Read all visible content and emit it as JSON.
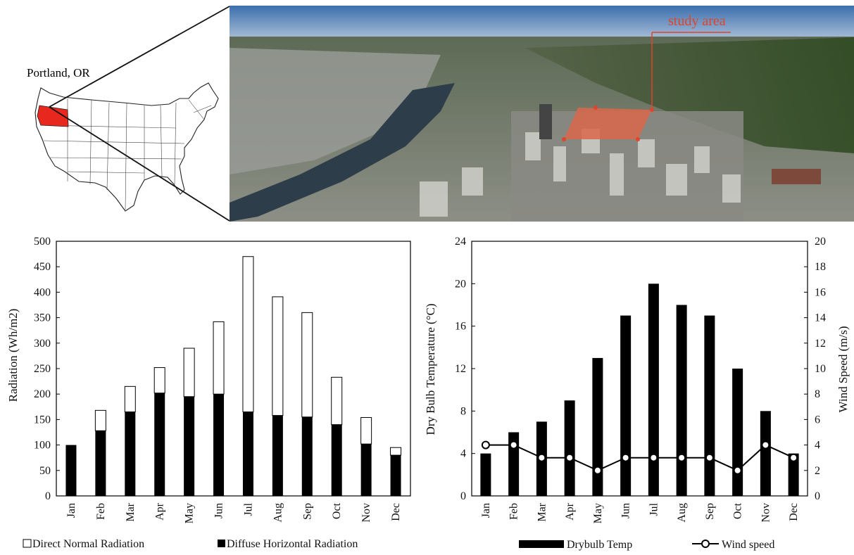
{
  "map": {
    "label": "Portland, OR",
    "highlight_color": "#e8281e"
  },
  "photo": {
    "callout": "study area",
    "callout_color": "#e0442a"
  },
  "chart_data": [
    {
      "type": "bar",
      "stacked": true,
      "categories": [
        "Jan",
        "Feb",
        "Mar",
        "Apr",
        "May",
        "Jun",
        "Jul",
        "Aug",
        "Sep",
        "Oct",
        "Nov",
        "Dec"
      ],
      "series": [
        {
          "name": "Diffuse Horizontal Radiation",
          "values": [
            100,
            128,
            165,
            202,
            195,
            200,
            165,
            158,
            155,
            140,
            102,
            80
          ],
          "color": "#000000"
        },
        {
          "name": "Direct Normal Radiation",
          "values": [
            0,
            40,
            50,
            50,
            95,
            142,
            305,
            233,
            205,
            93,
            52,
            15
          ],
          "color": "#ffffff"
        }
      ],
      "ylabel": "Radiation (Wh/m2)",
      "ylim": [
        0,
        500
      ],
      "yticks": [
        0,
        50,
        100,
        150,
        200,
        250,
        300,
        350,
        400,
        450,
        500
      ],
      "legend": {
        "placement": "bottom",
        "entries": [
          "Direct Normal Radiation",
          "Diffuse Horizontal Radiation"
        ]
      },
      "grid": false
    },
    {
      "type": "bar",
      "categories": [
        "Jan",
        "Feb",
        "Mar",
        "Apr",
        "May",
        "Jun",
        "Jul",
        "Aug",
        "Sep",
        "Oct",
        "Nov",
        "Dec"
      ],
      "series": [
        {
          "name": "Drybulb Temp",
          "type": "bar",
          "axis": "left",
          "values": [
            4,
            6,
            7,
            9,
            13,
            17,
            20,
            18,
            17,
            12,
            8,
            4
          ],
          "color": "#000000"
        },
        {
          "name": "Wind speed",
          "type": "line",
          "axis": "right",
          "values": [
            4,
            4,
            3,
            3,
            2,
            3,
            3,
            3,
            3,
            2,
            4,
            3
          ],
          "color": "#000000"
        }
      ],
      "ylabel": "Dry Bulb Temperature (°C)",
      "ylim": [
        0,
        24
      ],
      "yticks": [
        0,
        4,
        8,
        12,
        16,
        20,
        24
      ],
      "y2label": "Wind Speed (m/s)",
      "y2lim": [
        0,
        20
      ],
      "y2ticks": [
        0,
        2,
        4,
        6,
        8,
        10,
        12,
        14,
        16,
        18,
        20
      ],
      "legend": {
        "placement": "bottom",
        "entries": [
          "Drybulb Temp",
          "Wind speed"
        ]
      },
      "grid": false
    }
  ]
}
